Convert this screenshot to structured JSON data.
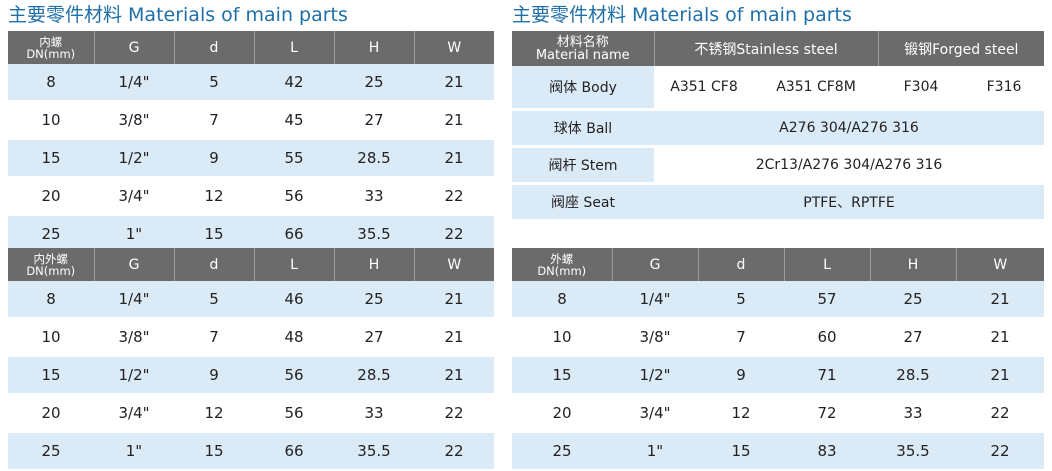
{
  "titles": {
    "left": "主要零件材料 Materials of main parts",
    "right": "主要零件材料 Materials of main parts"
  },
  "table_inner": {
    "header": {
      "dn_line1": "内螺",
      "dn_line2": "DN(mm)",
      "cols": [
        "G",
        "d",
        "L",
        "H",
        "W"
      ]
    },
    "rows": [
      [
        "8",
        "1/4\"",
        "5",
        "42",
        "25",
        "21"
      ],
      [
        "10",
        "3/8\"",
        "7",
        "45",
        "27",
        "21"
      ],
      [
        "15",
        "1/2\"",
        "9",
        "55",
        "28.5",
        "21"
      ],
      [
        "20",
        "3/4\"",
        "12",
        "56",
        "33",
        "22"
      ],
      [
        "25",
        "1\"",
        "15",
        "66",
        "35.5",
        "22"
      ]
    ]
  },
  "table_inner_outer": {
    "header": {
      "dn_line1": "内外螺",
      "dn_line2": "DN(mm)",
      "cols": [
        "G",
        "d",
        "L",
        "H",
        "W"
      ]
    },
    "rows": [
      [
        "8",
        "1/4\"",
        "5",
        "46",
        "25",
        "21"
      ],
      [
        "10",
        "3/8\"",
        "7",
        "48",
        "27",
        "21"
      ],
      [
        "15",
        "1/2\"",
        "9",
        "56",
        "28.5",
        "21"
      ],
      [
        "20",
        "3/4\"",
        "12",
        "56",
        "33",
        "22"
      ],
      [
        "25",
        "1\"",
        "15",
        "66",
        "35.5",
        "22"
      ]
    ]
  },
  "table_outer": {
    "header": {
      "dn_line1": "外螺",
      "dn_line2": "DN(mm)",
      "cols": [
        "G",
        "d",
        "L",
        "H",
        "W"
      ]
    },
    "rows": [
      [
        "8",
        "1/4\"",
        "5",
        "57",
        "25",
        "21"
      ],
      [
        "10",
        "3/8\"",
        "7",
        "60",
        "27",
        "21"
      ],
      [
        "15",
        "1/2\"",
        "9",
        "71",
        "28.5",
        "21"
      ],
      [
        "20",
        "3/4\"",
        "12",
        "72",
        "33",
        "22"
      ],
      [
        "25",
        "1\"",
        "15",
        "83",
        "35.5",
        "22"
      ]
    ]
  },
  "materials": {
    "header": {
      "name_line1": "材料名称",
      "name_line2": "Material name",
      "stainless": "不锈钢Stainless steel",
      "forged": "锻钢Forged steel"
    },
    "body": {
      "label": "阀体 Body",
      "values": [
        "A351 CF8",
        "A351 CF8M",
        "F304",
        "F316"
      ]
    },
    "ball": {
      "label": "球体 Ball",
      "value": "A276 304/A276 316"
    },
    "stem": {
      "label": "阀杆 Stem",
      "value": "2Cr13/A276 304/A276 316"
    },
    "seat": {
      "label": "阀座 Seat",
      "value": "PTFE、RPTFE"
    }
  }
}
